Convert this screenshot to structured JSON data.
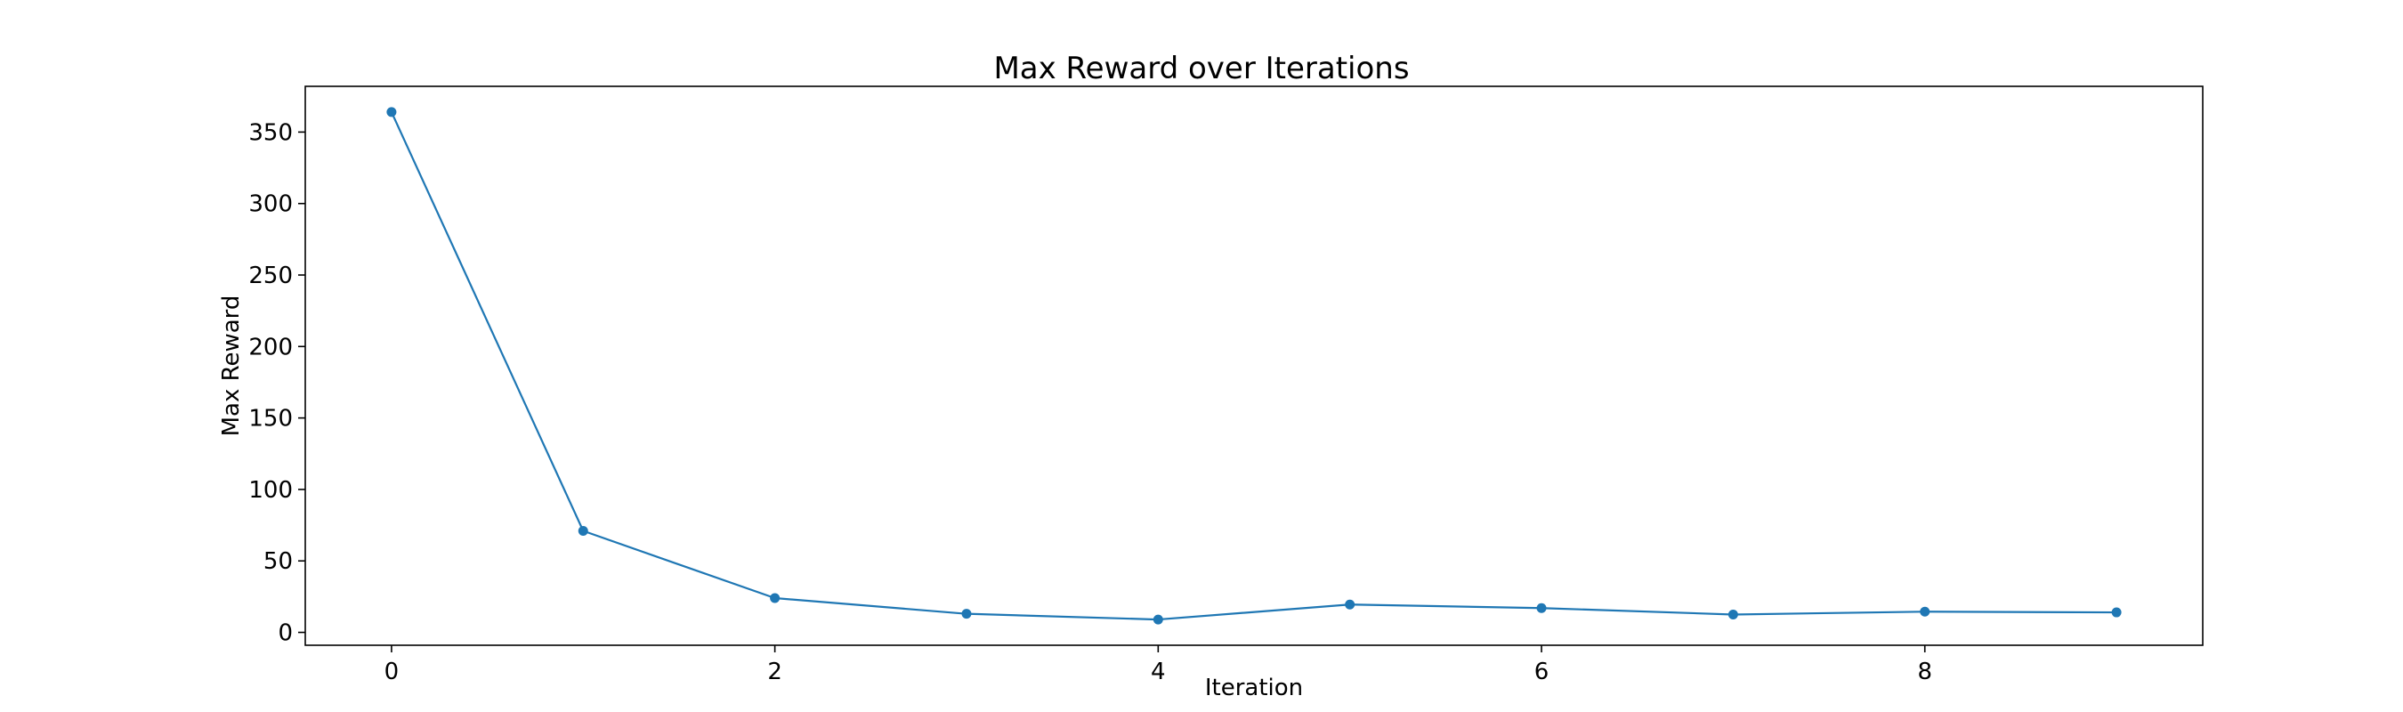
{
  "chart_data": {
    "type": "line",
    "title": "Max Reward over Iterations",
    "xlabel": "Iteration",
    "ylabel": "Max Reward",
    "x": [
      0,
      1,
      2,
      3,
      4,
      5,
      6,
      7,
      8,
      9
    ],
    "series": [
      {
        "values": [
          364,
          71,
          24,
          13,
          9,
          19.5,
          17,
          12.5,
          14.5,
          14
        ],
        "color": "#1f77b4",
        "marker": "circle"
      }
    ],
    "xlim": [
      -0.45,
      9.45
    ],
    "ylim": [
      -9,
      382
    ],
    "xticks": [
      0,
      2,
      4,
      6,
      8
    ],
    "yticks": [
      0,
      50,
      100,
      150,
      200,
      250,
      300,
      350
    ],
    "grid": false,
    "legend": "none"
  }
}
